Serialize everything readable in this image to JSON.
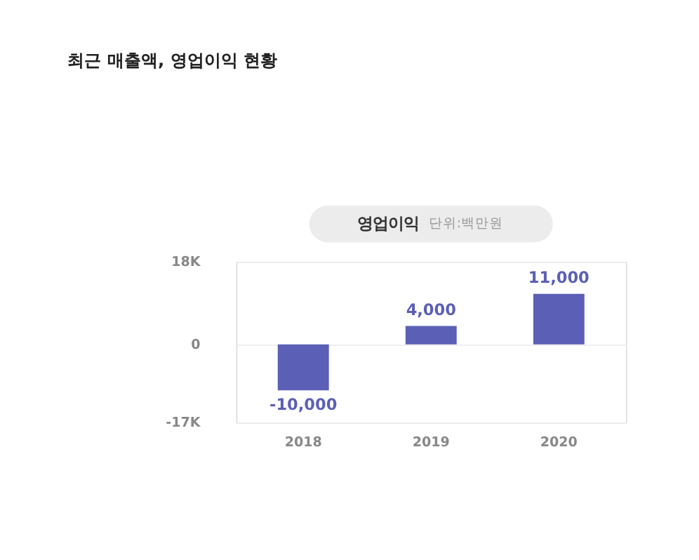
{
  "chart_data": {
    "type": "bar",
    "title": "최근 매출액, 영업이익 현황",
    "subtitle": "영업이익",
    "annotations": [
      "단위:백만원"
    ],
    "categories": [
      "2018",
      "2019",
      "2020"
    ],
    "values": [
      -10000,
      4000,
      11000
    ],
    "color": "#5b5fb5",
    "value_labels": [
      "-10,000",
      "4,000",
      "11,000"
    ],
    "ylim": [
      -17000,
      18000
    ],
    "yticks": [
      {
        "value": 18000,
        "label": "18K"
      },
      0,
      {
        "value": -17000,
        "label": "-17K"
      }
    ],
    "grid": "y"
  }
}
